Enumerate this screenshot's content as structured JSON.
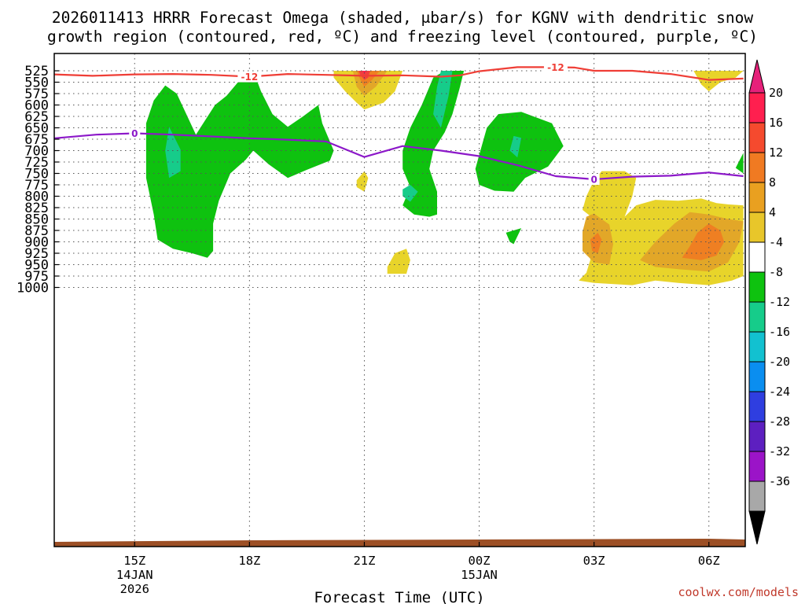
{
  "chart_data": {
    "type": "cross-section",
    "title_line1": "2026011413 HRRR Forecast Omega (shaded, μbar/s) for KGNV with dendritic snow",
    "title_line2": "growth region (contoured, red, ºC) and freezing level (contoured, purple, ºC)",
    "xlabel": "Forecast Time (UTC)",
    "credit": "coolwx.com/models",
    "y_ticks": [
      "525",
      "550",
      "575",
      "600",
      "625",
      "650",
      "675",
      "700",
      "725",
      "750",
      "775",
      "800",
      "825",
      "850",
      "875",
      "900",
      "925",
      "950",
      "975",
      "1000"
    ],
    "y_values": [
      525,
      550,
      575,
      600,
      625,
      650,
      675,
      700,
      725,
      750,
      775,
      800,
      825,
      850,
      875,
      900,
      925,
      950,
      975,
      1000
    ],
    "x_ticks": [
      {
        "hour": 15,
        "label": "15Z",
        "sub1": "14JAN",
        "sub2": "2026"
      },
      {
        "hour": 18,
        "label": "18Z",
        "sub1": "",
        "sub2": ""
      },
      {
        "hour": 21,
        "label": "21Z",
        "sub1": "",
        "sub2": ""
      },
      {
        "hour": 24,
        "label": "00Z",
        "sub1": "15JAN",
        "sub2": ""
      },
      {
        "hour": 27,
        "label": "03Z",
        "sub1": "",
        "sub2": ""
      },
      {
        "hour": 30,
        "label": "06Z",
        "sub1": "",
        "sub2": ""
      }
    ],
    "colorbar": {
      "labels": [
        "20",
        "16",
        "12",
        "8",
        "4",
        "-4",
        "-8",
        "-12",
        "-16",
        "-20",
        "-24",
        "-28",
        "-32",
        "-36"
      ],
      "colors": [
        "#ff1f4f",
        "#f54a2e",
        "#f07a22",
        "#e9a020",
        "#e8c62a",
        "#ffffff",
        "#0ec20f",
        "#16cc8a",
        "#12c1d0",
        "#0a8ef0",
        "#2f3ee0",
        "#5d1fc0",
        "#9b14c8",
        "#a8a8a8"
      ],
      "top_arrow_color": "#e6217a",
      "bottom_arrow_color": "#000000"
    },
    "colors": {
      "green": "#0ec20f",
      "teal": "#16cc8a",
      "yellow": "#e8d42a",
      "gold": "#e2a728",
      "orange": "#ef7f22",
      "red": "#f23e3e",
      "hotpink": "#ff1f4f",
      "dgz_line": "#ef3e36",
      "freezing_line": "#8c18c9",
      "terrain": "#9c4f25"
    },
    "dgz_label": "-12",
    "freezing_label": "0",
    "dgz_line_points": [
      [
        12.9,
        533
      ],
      [
        13.9,
        536
      ],
      [
        15,
        533
      ],
      [
        16,
        532
      ],
      [
        17,
        534
      ],
      [
        18,
        538
      ],
      [
        19,
        532
      ],
      [
        20,
        534
      ],
      [
        21,
        536
      ],
      [
        22,
        535
      ],
      [
        23,
        538
      ],
      [
        23.5,
        535
      ],
      [
        24,
        526
      ],
      [
        25,
        517
      ],
      [
        26,
        517
      ],
      [
        26.5,
        518
      ],
      [
        27,
        525
      ],
      [
        28,
        525
      ],
      [
        29,
        532
      ],
      [
        30,
        545
      ],
      [
        30.9,
        542
      ]
    ],
    "freezing_line_points": [
      [
        12.9,
        673
      ],
      [
        14,
        665
      ],
      [
        15,
        662
      ],
      [
        16,
        665
      ],
      [
        17,
        669
      ],
      [
        18,
        673
      ],
      [
        19,
        676
      ],
      [
        20,
        680
      ],
      [
        21,
        714
      ],
      [
        22,
        690
      ],
      [
        23,
        700
      ],
      [
        24,
        712
      ],
      [
        25,
        732
      ],
      [
        26,
        756
      ],
      [
        27,
        763
      ],
      [
        28,
        757
      ],
      [
        29,
        755
      ],
      [
        30,
        748
      ],
      [
        30.9,
        756
      ]
    ],
    "omega_shaded": [
      {
        "color": "green",
        "points": [
          [
            15.3,
            640
          ],
          [
            15.5,
            590
          ],
          [
            15.8,
            557
          ],
          [
            16.1,
            575
          ],
          [
            16.6,
            665
          ],
          [
            17.1,
            600
          ],
          [
            17.4,
            580
          ],
          [
            17.8,
            540
          ],
          [
            18.1,
            525
          ],
          [
            18.3,
            570
          ],
          [
            18.6,
            620
          ],
          [
            19,
            648
          ],
          [
            19.4,
            625
          ],
          [
            19.8,
            600
          ],
          [
            19.9,
            640
          ],
          [
            20.2,
            700
          ],
          [
            20.1,
            722
          ],
          [
            19.5,
            742
          ],
          [
            19,
            760
          ],
          [
            18.5,
            730
          ],
          [
            18.1,
            700
          ],
          [
            17.9,
            720
          ],
          [
            17.5,
            750
          ],
          [
            17.2,
            810
          ],
          [
            17.05,
            860
          ],
          [
            17.05,
            920
          ],
          [
            16.9,
            935
          ],
          [
            16.5,
            925
          ],
          [
            16.0,
            915
          ],
          [
            15.6,
            895
          ],
          [
            15.5,
            840
          ],
          [
            15.3,
            760
          ]
        ]
      },
      {
        "color": "teal",
        "points": [
          [
            15.9,
            648
          ],
          [
            16.2,
            698
          ],
          [
            16.2,
            745
          ],
          [
            15.9,
            760
          ],
          [
            15.8,
            700
          ]
        ]
      },
      {
        "color": "green",
        "points": [
          [
            22.0,
            700
          ],
          [
            22.2,
            650
          ],
          [
            22.5,
            600
          ],
          [
            22.8,
            540
          ],
          [
            23.1,
            525
          ],
          [
            23.6,
            525
          ],
          [
            23.5,
            560
          ],
          [
            23.3,
            620
          ],
          [
            23.1,
            660
          ],
          [
            22.8,
            700
          ],
          [
            22.7,
            740
          ],
          [
            22.9,
            790
          ],
          [
            22.9,
            840
          ],
          [
            22.7,
            845
          ],
          [
            22.3,
            840
          ],
          [
            22.0,
            820
          ],
          [
            22.2,
            780
          ],
          [
            22.0,
            740
          ],
          [
            22.0,
            710
          ]
        ]
      },
      {
        "color": "teal",
        "points": [
          [
            23.0,
            525
          ],
          [
            23.3,
            525
          ],
          [
            23.2,
            580
          ],
          [
            23.0,
            650
          ],
          [
            22.8,
            620
          ],
          [
            22.9,
            560
          ]
        ]
      },
      {
        "color": "teal",
        "points": [
          [
            22.0,
            785
          ],
          [
            22.2,
            775
          ],
          [
            22.4,
            790
          ],
          [
            22.2,
            812
          ],
          [
            22.0,
            800
          ]
        ]
      },
      {
        "color": "green",
        "points": [
          [
            24.0,
            710
          ],
          [
            24.2,
            650
          ],
          [
            24.5,
            620
          ],
          [
            25.1,
            615
          ],
          [
            25.9,
            640
          ],
          [
            26.2,
            690
          ],
          [
            25.8,
            735
          ],
          [
            25.2,
            760
          ],
          [
            24.9,
            790
          ],
          [
            24.4,
            788
          ],
          [
            24.0,
            775
          ],
          [
            23.9,
            740
          ]
        ]
      },
      {
        "color": "teal",
        "points": [
          [
            24.9,
            668
          ],
          [
            25.1,
            672
          ],
          [
            25.0,
            715
          ],
          [
            24.8,
            700
          ]
        ]
      },
      {
        "color": "green",
        "points": [
          [
            24.7,
            880
          ],
          [
            25.1,
            870
          ],
          [
            24.9,
            905
          ],
          [
            24.8,
            900
          ]
        ]
      },
      {
        "color": "green",
        "points": [
          [
            30.7,
            738
          ],
          [
            30.9,
            705
          ],
          [
            30.9,
            750
          ]
        ]
      },
      {
        "color": "yellow",
        "points": [
          [
            20.2,
            525
          ],
          [
            20.5,
            525
          ],
          [
            21.0,
            525
          ],
          [
            21.5,
            525
          ],
          [
            22.0,
            525
          ],
          [
            21.8,
            570
          ],
          [
            21.5,
            595
          ],
          [
            21.0,
            610
          ],
          [
            20.8,
            595
          ],
          [
            20.5,
            570
          ],
          [
            20.2,
            540
          ]
        ]
      },
      {
        "color": "gold",
        "points": [
          [
            20.7,
            525
          ],
          [
            21.6,
            525
          ],
          [
            21.3,
            560
          ],
          [
            21.0,
            580
          ],
          [
            20.8,
            560
          ]
        ]
      },
      {
        "color": "orange",
        "points": [
          [
            20.8,
            525
          ],
          [
            21.4,
            525
          ],
          [
            21.2,
            545
          ],
          [
            21.0,
            560
          ],
          [
            20.9,
            545
          ]
        ]
      },
      {
        "color": "red",
        "points": [
          [
            20.85,
            525
          ],
          [
            21.15,
            525
          ],
          [
            21.1,
            540
          ],
          [
            21.0,
            545
          ],
          [
            20.9,
            535
          ]
        ]
      },
      {
        "color": "hotpink",
        "points": [
          [
            20.95,
            525
          ],
          [
            21.05,
            525
          ],
          [
            21.0,
            532
          ]
        ]
      },
      {
        "color": "yellow",
        "points": [
          [
            29.6,
            525
          ],
          [
            30.9,
            525
          ],
          [
            30.7,
            540
          ],
          [
            30.3,
            550
          ],
          [
            30.0,
            570
          ],
          [
            29.8,
            555
          ]
        ]
      },
      {
        "color": "yellow",
        "points": [
          [
            20.8,
            765
          ],
          [
            21.0,
            745
          ],
          [
            21.1,
            760
          ],
          [
            21.0,
            790
          ],
          [
            20.8,
            780
          ]
        ]
      },
      {
        "color": "yellow",
        "points": [
          [
            21.6,
            955
          ],
          [
            21.8,
            925
          ],
          [
            22.1,
            915
          ],
          [
            22.2,
            940
          ],
          [
            22.1,
            970
          ],
          [
            21.6,
            970
          ]
        ]
      },
      {
        "color": "yellow",
        "points": [
          [
            27.0,
            765
          ],
          [
            27.2,
            745
          ],
          [
            27.8,
            745
          ],
          [
            28.1,
            760
          ],
          [
            28.0,
            800
          ],
          [
            27.8,
            845
          ],
          [
            28.1,
            820
          ],
          [
            28.6,
            808
          ],
          [
            29.2,
            810
          ],
          [
            29.8,
            805
          ],
          [
            30.2,
            815
          ],
          [
            30.5,
            818
          ],
          [
            30.9,
            820
          ],
          [
            30.9,
            975
          ],
          [
            30.6,
            985
          ],
          [
            30.0,
            995
          ],
          [
            29.2,
            990
          ],
          [
            28.6,
            985
          ],
          [
            28.0,
            995
          ],
          [
            27.0,
            990
          ],
          [
            26.6,
            985
          ],
          [
            26.8,
            968
          ],
          [
            26.9,
            940
          ],
          [
            26.9,
            900
          ],
          [
            27.0,
            850
          ],
          [
            26.7,
            830
          ],
          [
            26.8,
            800
          ]
        ]
      },
      {
        "color": "gold",
        "points": [
          [
            26.7,
            878
          ],
          [
            26.8,
            845
          ],
          [
            27.0,
            838
          ],
          [
            27.4,
            862
          ],
          [
            27.5,
            905
          ],
          [
            27.4,
            950
          ],
          [
            27.0,
            945
          ],
          [
            26.7,
            920
          ]
        ]
      },
      {
        "color": "gold",
        "points": [
          [
            28.2,
            940
          ],
          [
            28.6,
            900
          ],
          [
            29.1,
            860
          ],
          [
            29.5,
            835
          ],
          [
            30.0,
            840
          ],
          [
            30.5,
            850
          ],
          [
            30.9,
            855
          ],
          [
            30.8,
            900
          ],
          [
            30.5,
            945
          ],
          [
            30.0,
            965
          ],
          [
            29.2,
            960
          ],
          [
            28.6,
            955
          ]
        ]
      },
      {
        "color": "orange",
        "points": [
          [
            26.9,
            895
          ],
          [
            27.1,
            880
          ],
          [
            27.2,
            895
          ],
          [
            27.1,
            925
          ],
          [
            26.95,
            920
          ]
        ]
      },
      {
        "color": "orange",
        "points": [
          [
            29.3,
            935
          ],
          [
            29.5,
            910
          ],
          [
            29.7,
            880
          ],
          [
            30.0,
            860
          ],
          [
            30.3,
            875
          ],
          [
            30.4,
            900
          ],
          [
            30.2,
            930
          ],
          [
            29.8,
            940
          ]
        ]
      }
    ]
  }
}
